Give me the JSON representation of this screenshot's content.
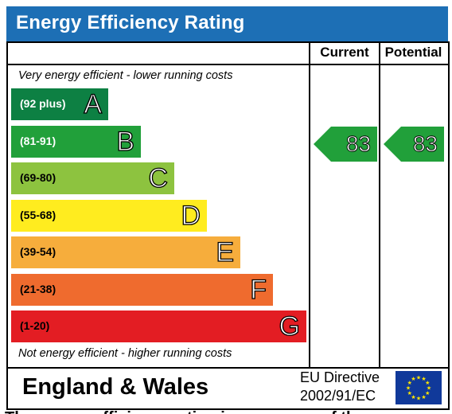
{
  "title": "Energy Efficiency Rating",
  "columns": {
    "current": "Current",
    "potential": "Potential"
  },
  "top_caption": "Very energy efficient - lower running costs",
  "bottom_caption": "Not energy efficient - higher running costs",
  "bands": [
    {
      "range": "(92 plus)",
      "letter": "A",
      "color": "#0d8043",
      "text_color": "#ffffff"
    },
    {
      "range": "(81-91)",
      "letter": "B",
      "color": "#21a03a",
      "text_color": "#ffffff"
    },
    {
      "range": "(69-80)",
      "letter": "C",
      "color": "#8dc33f",
      "text_color": "#000000"
    },
    {
      "range": "(55-68)",
      "letter": "D",
      "color": "#ffec1f",
      "text_color": "#000000"
    },
    {
      "range": "(39-54)",
      "letter": "E",
      "color": "#f6ad3c",
      "text_color": "#000000"
    },
    {
      "range": "(21-38)",
      "letter": "F",
      "color": "#ef6b2e",
      "text_color": "#000000"
    },
    {
      "range": "(1-20)",
      "letter": "G",
      "color": "#e31d23",
      "text_color": "#000000"
    }
  ],
  "ratings": {
    "current": {
      "value": "83",
      "band": "B",
      "color": "#21a03a"
    },
    "potential": {
      "value": "83",
      "band": "B",
      "color": "#21a03a"
    }
  },
  "footer": {
    "region": "England & Wales",
    "directive_line1": "EU Directive",
    "directive_line2": "2002/91/EC",
    "flag_icon": "eu-flag-icon"
  },
  "bottom_text": "The energy efficiency rating is a measure of the"
}
